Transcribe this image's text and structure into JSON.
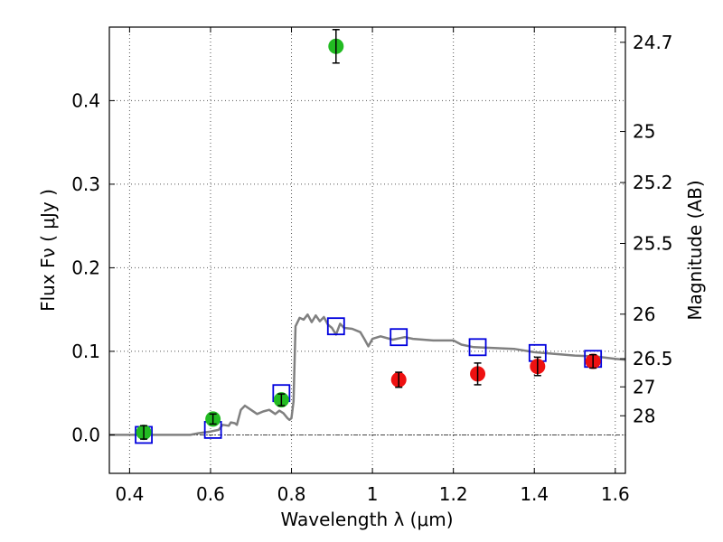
{
  "chart_data": {
    "type": "scatter",
    "xlabel": "Wavelength  λ (μm)",
    "ylabel": "Flux  Fν  ( μJy )",
    "y2label": "Magnitude (AB)",
    "xlim": [
      0.35,
      1.625
    ],
    "ylim": [
      -0.046,
      0.488
    ],
    "xticks": [
      {
        "value": 0.4,
        "label": "0.4"
      },
      {
        "value": 0.6,
        "label": "0.6"
      },
      {
        "value": 0.8,
        "label": "0.8"
      },
      {
        "value": 1.0,
        "label": "1"
      },
      {
        "value": 1.2,
        "label": "1.2"
      },
      {
        "value": 1.4,
        "label": "1.4"
      },
      {
        "value": 1.6,
        "label": "1.6"
      }
    ],
    "yticks": [
      {
        "value": 0.0,
        "label": "0.0"
      },
      {
        "value": 0.1,
        "label": "0.1"
      },
      {
        "value": 0.2,
        "label": "0.2"
      },
      {
        "value": 0.3,
        "label": "0.3"
      },
      {
        "value": 0.4,
        "label": "0.4"
      }
    ],
    "magnitude_ticks": [
      {
        "flux": 0.4698,
        "label": "24.7"
      },
      {
        "flux": 0.3631,
        "label": "25"
      },
      {
        "flux": 0.302,
        "label": "25.2"
      },
      {
        "flux": 0.2291,
        "label": "25.5"
      },
      {
        "flux": 0.1445,
        "label": "26"
      },
      {
        "flux": 0.0912,
        "label": "26.5"
      },
      {
        "flux": 0.0575,
        "label": "27"
      },
      {
        "flux": 0.0229,
        "label": "28"
      }
    ],
    "grid": true,
    "colors": {
      "detection": "#22bb22",
      "upper_limit": "#ee1111",
      "model_band": "#0000dd",
      "model_spectrum": "#808080"
    },
    "series": [
      {
        "marker": "green-circle",
        "points": [
          {
            "x": 0.435,
            "y": 0.003,
            "err": 0.008
          },
          {
            "x": 0.606,
            "y": 0.019,
            "err": 0.006
          },
          {
            "x": 0.775,
            "y": 0.042,
            "err": 0.007
          },
          {
            "x": 0.91,
            "y": 0.465,
            "err": 0.02
          }
        ]
      },
      {
        "marker": "red-circle",
        "points": [
          {
            "x": 1.065,
            "y": 0.066,
            "err": 0.009
          },
          {
            "x": 1.26,
            "y": 0.073,
            "err": 0.013
          },
          {
            "x": 1.408,
            "y": 0.082,
            "err": 0.011
          },
          {
            "x": 1.545,
            "y": 0.088,
            "err": 0.008
          }
        ]
      },
      {
        "marker": "blue-open-square",
        "points": [
          {
            "x": 0.435,
            "y": 0.0
          },
          {
            "x": 0.606,
            "y": 0.006
          },
          {
            "x": 0.775,
            "y": 0.05
          },
          {
            "x": 0.91,
            "y": 0.13
          },
          {
            "x": 1.065,
            "y": 0.117
          },
          {
            "x": 1.26,
            "y": 0.105
          },
          {
            "x": 1.408,
            "y": 0.098
          },
          {
            "x": 1.545,
            "y": 0.091
          }
        ]
      },
      {
        "marker": "gray-line",
        "x": [
          0.35,
          0.55,
          0.57,
          0.6,
          0.62,
          0.63,
          0.645,
          0.65,
          0.66,
          0.665,
          0.675,
          0.685,
          0.7,
          0.715,
          0.73,
          0.745,
          0.76,
          0.77,
          0.78,
          0.79,
          0.795,
          0.8,
          0.805,
          0.81,
          0.82,
          0.83,
          0.84,
          0.85,
          0.86,
          0.87,
          0.88,
          0.89,
          0.9,
          0.91,
          0.92,
          0.93,
          0.95,
          0.97,
          0.98,
          0.99,
          1.0,
          1.02,
          1.05,
          1.08,
          1.1,
          1.15,
          1.2,
          1.22,
          1.25,
          1.3,
          1.35,
          1.4,
          1.45,
          1.5,
          1.55,
          1.6,
          1.625
        ],
        "y": [
          0.0,
          0.0,
          0.002,
          0.004,
          0.006,
          0.012,
          0.011,
          0.015,
          0.014,
          0.012,
          0.03,
          0.035,
          0.03,
          0.025,
          0.028,
          0.03,
          0.025,
          0.029,
          0.026,
          0.02,
          0.018,
          0.02,
          0.04,
          0.13,
          0.14,
          0.138,
          0.144,
          0.135,
          0.143,
          0.136,
          0.141,
          0.132,
          0.128,
          0.12,
          0.133,
          0.128,
          0.127,
          0.123,
          0.115,
          0.106,
          0.115,
          0.118,
          0.114,
          0.117,
          0.115,
          0.113,
          0.113,
          0.108,
          0.105,
          0.104,
          0.103,
          0.099,
          0.097,
          0.095,
          0.094,
          0.091,
          0.09
        ]
      }
    ]
  }
}
